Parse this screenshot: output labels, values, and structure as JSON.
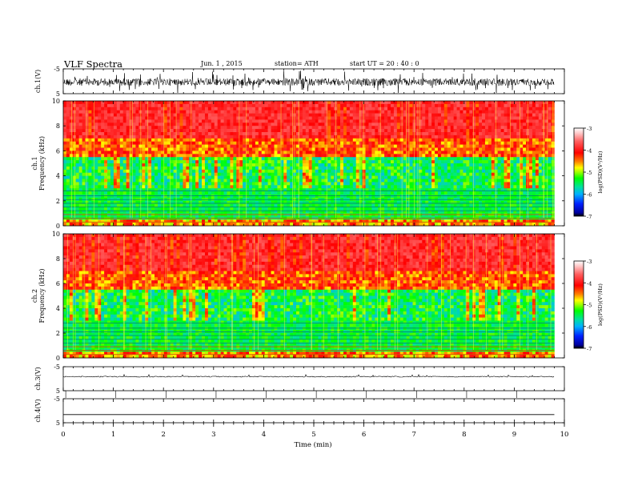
{
  "header": {
    "title": "VLF  Spectra",
    "date": "Jun. 1 , 2015",
    "station": "station= ATH",
    "start": "start  UT  =    20 : 40 : 0"
  },
  "chart_data": [
    {
      "id": "ch1-waveform",
      "type": "line",
      "ylabel": "ch.1(V)",
      "ylim": [
        -5,
        5
      ],
      "yticks": [
        "5",
        "-5"
      ],
      "description_color": "#000000",
      "x_end_min": 9.8
    },
    {
      "id": "ch1-spectrogram",
      "type": "heatmap",
      "ylabel": "ch.1 Frequency  (kHz)",
      "ylabel_top": "ch.1",
      "ylabel_bottom": "Frequency  (kHz)",
      "ylim": [
        0,
        10
      ],
      "yticks": [
        "0",
        "2",
        "4",
        "6",
        "8",
        "10"
      ],
      "x_end_min": 9.8,
      "colorbar": {
        "label": "log(PSD)(V²/Hz)",
        "range": [
          -7,
          -3
        ],
        "ticks": [
          "-3",
          "-4",
          "-5",
          "-6",
          "-7"
        ],
        "colors": [
          "#000000",
          "#0000c8",
          "#0050ff",
          "#00c8ff",
          "#00e080",
          "#00ff00",
          "#c8ff00",
          "#ffff00",
          "#ff8000",
          "#ff0000",
          "#ffc0c0",
          "#ffffff"
        ]
      }
    },
    {
      "id": "ch2-spectrogram",
      "type": "heatmap",
      "ylabel": "ch.2 Frequency  (kHz)",
      "ylabel_top": "ch.2",
      "ylabel_bottom": "Frequency  (kHz)",
      "ylim": [
        0,
        10
      ],
      "yticks": [
        "0",
        "2",
        "4",
        "6",
        "8",
        "10"
      ],
      "x_end_min": 9.8,
      "colorbar": {
        "label": "log(PSD)(V²/Hz)",
        "range": [
          -7,
          -3
        ],
        "ticks": [
          "-3",
          "-4",
          "-5",
          "-6",
          "-7"
        ]
      }
    },
    {
      "id": "ch3-waveform",
      "type": "line",
      "ylabel": "ch.3(V)",
      "ylim": [
        -5,
        5
      ],
      "yticks": [
        "5",
        "-5"
      ],
      "baseline_v": 0.2
    },
    {
      "id": "ch4-waveform",
      "type": "line",
      "ylabel": "ch.4(V)",
      "ylim": [
        -5,
        5
      ],
      "yticks": [
        "5",
        "-5"
      ],
      "baseline_v": -1.6
    }
  ],
  "xaxis": {
    "label": "Time  (min)",
    "range": [
      0,
      10
    ],
    "ticks": [
      "0",
      "1",
      "2",
      "3",
      "4",
      "5",
      "6",
      "7",
      "8",
      "9",
      "10"
    ]
  }
}
